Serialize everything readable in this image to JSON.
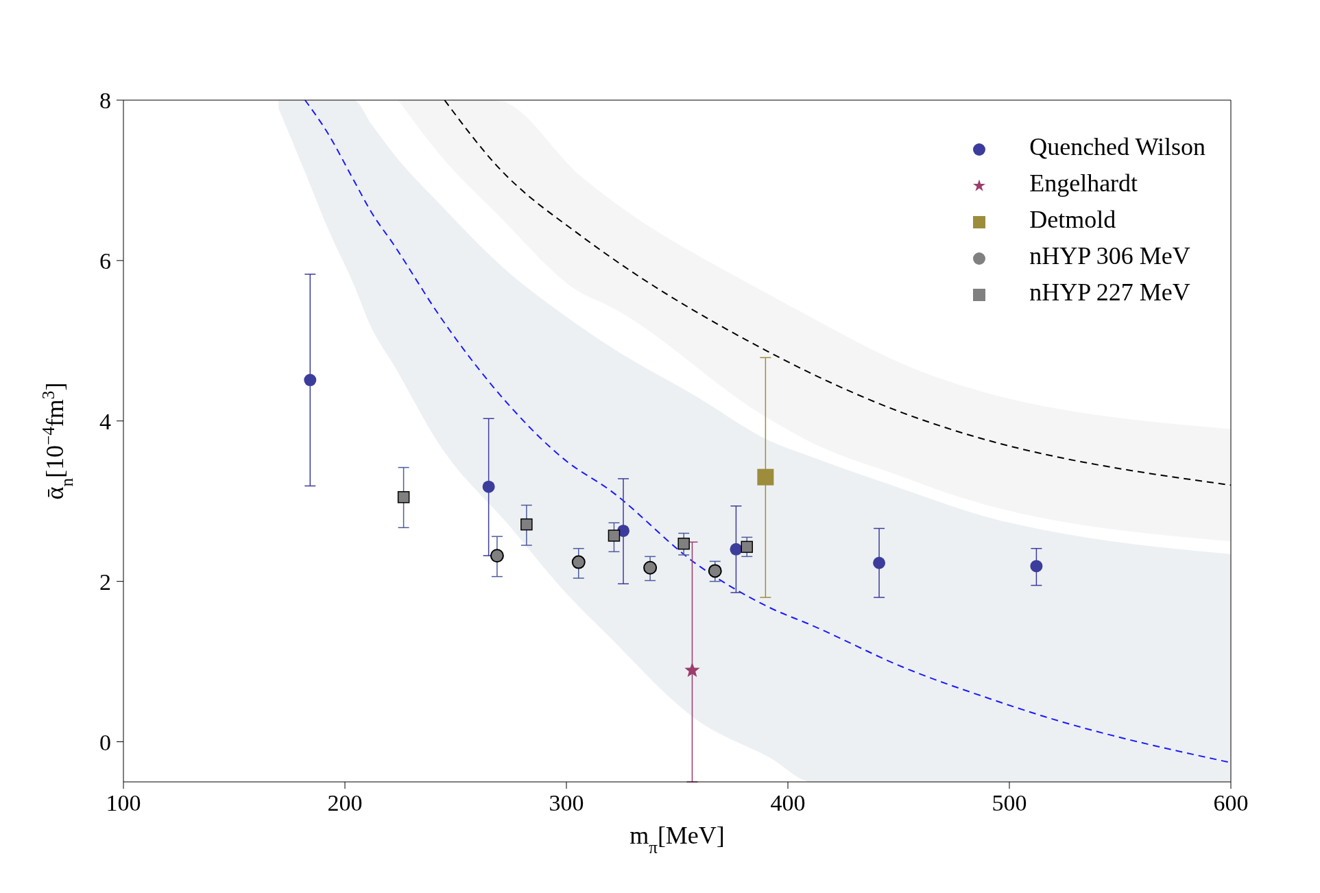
{
  "chart_data": {
    "type": "scatter",
    "xlabel": "m$_{π}$[MeV]",
    "ylabel": "ᾱ$_{n}$[10$^{−4}$fm$^{3}$]",
    "xlim": [
      100,
      600
    ],
    "xticks": [
      100,
      200,
      300,
      400,
      500,
      600
    ],
    "ylim": [
      -0.5,
      8
    ],
    "yticks": [
      0,
      2,
      4,
      6,
      8
    ],
    "legend": "top right",
    "grid": false,
    "series": [
      {
        "type": "line",
        "color": "#1a1aff",
        "line_style": "dashed",
        "x": [
          170,
          182,
          192,
          204,
          212,
          222,
          243,
          274,
          300,
          319,
          359,
          392,
          411,
          452,
          493,
          514,
          600
        ],
        "values": [
          null,
          8,
          7.6,
          7.0,
          6.6,
          6.2,
          5.3,
          4.2,
          3.5,
          3.15,
          2.21,
          1.67,
          1.45,
          0.93,
          0.52,
          0.33,
          -0.26
        ],
        "lower": [
          7.9,
          7.1,
          6.42,
          5.7,
          5.16,
          4.7,
          3.69,
          2.7,
          1.85,
          1.32,
          0.27,
          -0.2,
          -0.5,
          -0.5,
          -0.5,
          -0.5,
          -0.5
        ],
        "upper": [
          8,
          8,
          8,
          8,
          7.7,
          7.33,
          6.7,
          5.85,
          5.3,
          4.94,
          4.3,
          3.75,
          3.55,
          3.15,
          2.78,
          2.65,
          2.34
        ]
      },
      {
        "type": "line",
        "color": "#000000",
        "line_style": "dashed",
        "x": [
          224,
          245,
          268,
          307,
          318,
          390,
          410,
          452,
          472,
          600
        ],
        "values": [
          null,
          8,
          7.2,
          6.3,
          6.08,
          4.88,
          4.6,
          4.1,
          3.91,
          3.2
        ],
        "lower": [
          8,
          7.25,
          6.6,
          5.59,
          5.45,
          4.05,
          3.74,
          3.3,
          3.1,
          2.5
        ],
        "upper": [
          8,
          8,
          8,
          7.04,
          6.8,
          5.6,
          5.3,
          4.71,
          4.5,
          3.9
        ]
      },
      {
        "name": "Quenched Wilson",
        "color": "#3c3c9c",
        "marker": "circle",
        "x": [
          184.3,
          264.9,
          325.7,
          376.6,
          441.2,
          512.2
        ],
        "values": [
          4.51,
          3.18,
          2.63,
          2.4,
          2.23,
          2.19
        ],
        "errors": [
          [
            3.19,
            5.83
          ],
          [
            2.32,
            4.03
          ],
          [
            1.97,
            3.28
          ],
          [
            1.86,
            2.94
          ],
          [
            1.8,
            2.66
          ],
          [
            1.95,
            2.41
          ]
        ]
      },
      {
        "name": "Engelhardt",
        "color": "#9c3c6c",
        "marker": "star",
        "x": [
          356.8
        ],
        "values": [
          0.89
        ],
        "errors": [
          [
            -0.5,
            2.49
          ]
        ]
      },
      {
        "name": "Detmold",
        "color": "#9c8c3c",
        "marker": "square",
        "x": [
          389.9
        ],
        "values": [
          3.3
        ],
        "errors": [
          [
            1.8,
            4.79
          ]
        ]
      },
      {
        "name": "nHYP 306 MeV",
        "color": "#808080",
        "marker": "circle",
        "x": [
          268.7,
          305.5,
          337.8,
          367.1
        ],
        "values": [
          2.32,
          2.24,
          2.17,
          2.13
        ],
        "errors": [
          [
            2.06,
            2.56
          ],
          [
            2.04,
            2.41
          ],
          [
            2.01,
            2.31
          ],
          [
            2.0,
            2.25
          ]
        ]
      },
      {
        "name": "nHYP 227 MeV",
        "color": "#808080",
        "marker": "square",
        "x": [
          226.5,
          282.0,
          321.5,
          353.0,
          381.5
        ],
        "values": [
          3.05,
          2.71,
          2.57,
          2.47,
          2.43
        ],
        "errors": [
          [
            2.67,
            3.42
          ],
          [
            2.45,
            2.95
          ],
          [
            2.37,
            2.73
          ],
          [
            2.33,
            2.6
          ],
          [
            2.31,
            2.55
          ]
        ]
      }
    ]
  }
}
